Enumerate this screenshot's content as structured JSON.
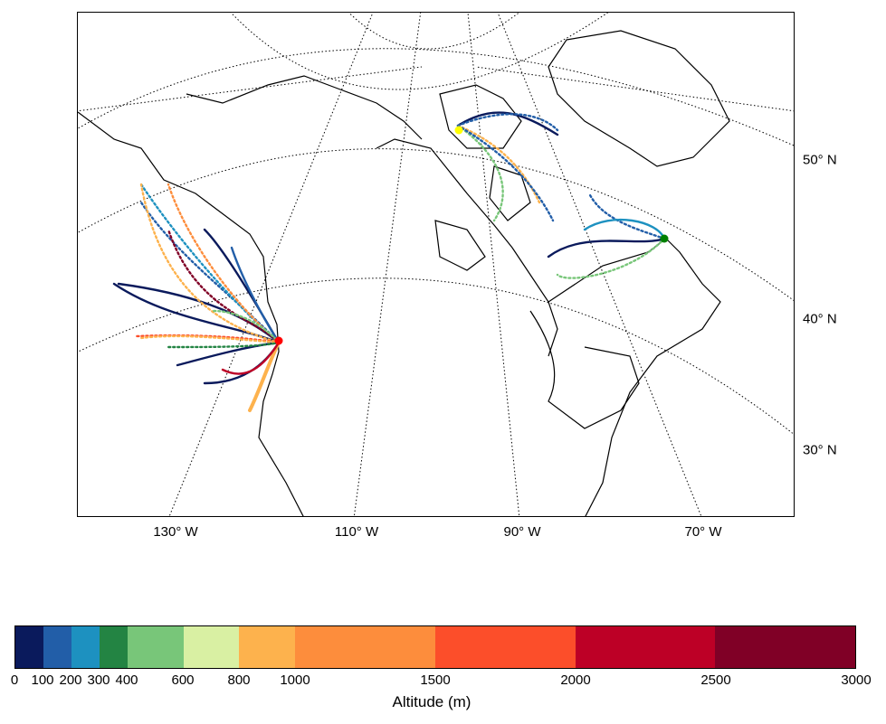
{
  "map": {
    "longitude_labels": [
      "130° W",
      "110° W",
      "90° W",
      "70° W"
    ],
    "latitude_labels": [
      "50° N",
      "40° N",
      "30° N"
    ],
    "gridline_style": "dotted",
    "coastline_color": "#000000",
    "source_markers": [
      {
        "name": "west-coast-source",
        "color": "#ff0000"
      },
      {
        "name": "arctic-source",
        "color": "#ffff00"
      },
      {
        "name": "labrador-source",
        "color": "#008000"
      }
    ]
  },
  "colorbar": {
    "label": "Altitude (m)",
    "boundaries": [
      0,
      100,
      200,
      300,
      400,
      600,
      800,
      1000,
      1500,
      2000,
      2500,
      3000
    ],
    "tick_labels": [
      "0",
      "100",
      "200",
      "300",
      "400",
      "600",
      "800",
      "1000",
      "1500",
      "2000",
      "2500",
      "3000"
    ],
    "colors": [
      "#0a1a5c",
      "#225ea8",
      "#1d91c0",
      "#238443",
      "#78c679",
      "#d9f0a3",
      "#fdb24d",
      "#fd8d3c",
      "#fc4e2a",
      "#bd0026",
      "#800026"
    ]
  }
}
